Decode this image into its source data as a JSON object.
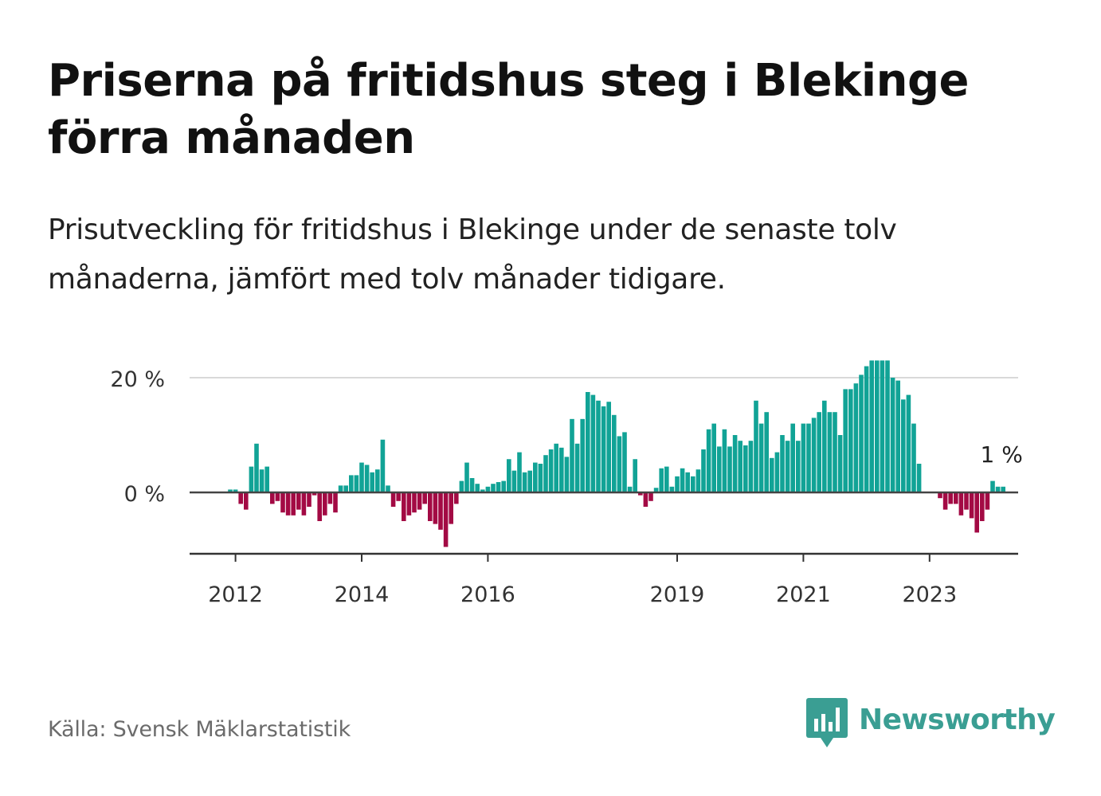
{
  "title": "Priserna på fritidshus steg i Blekinge förra månaden",
  "subtitle": "Prisutveckling för fritidshus i Blekinge under de senaste tolv månaderna, jämfört med tolv månader tidigare.",
  "source": "Källa: Svensk Mäklarstatistik",
  "brand": {
    "name": "Newsworthy",
    "icon": "newsworthy-bar-chart-icon"
  },
  "colors": {
    "positive": "#11a396",
    "negative": "#a30a44",
    "gridline": "#d9d9d9",
    "axis": "#333333",
    "brand": "#3a9e93"
  },
  "chart_data": {
    "type": "bar",
    "title": "",
    "xlabel": "",
    "ylabel": "",
    "ylim": [
      -11,
      23
    ],
    "yticks": [
      {
        "value": 0,
        "label": "0 %"
      },
      {
        "value": 20,
        "label": "20 %"
      }
    ],
    "xticks": [
      {
        "value": 2012,
        "label": "2012"
      },
      {
        "value": 2014,
        "label": "2014"
      },
      {
        "value": 2016,
        "label": "2016"
      },
      {
        "value": 2019,
        "label": "2019"
      },
      {
        "value": 2021,
        "label": "2021"
      },
      {
        "value": 2023,
        "label": "2023"
      }
    ],
    "grid": true,
    "start": "2011-12",
    "frequency": "monthly",
    "values": [
      0.5,
      0.5,
      -2,
      -3,
      4.5,
      8.5,
      4,
      4.5,
      -2,
      -1.5,
      -3.5,
      -4,
      -4,
      -3,
      -4,
      -2.5,
      -0.5,
      -5,
      -4,
      -2,
      -3.5,
      1.2,
      1.2,
      3,
      3,
      5.2,
      4.8,
      3.5,
      4,
      9.2,
      1.2,
      -2.5,
      -1.5,
      -5,
      -4,
      -3.5,
      -3,
      -2,
      -5,
      -5.5,
      -6.5,
      -9.5,
      -5.5,
      -2,
      2,
      5.2,
      2.5,
      1.5,
      0.5,
      1,
      1.5,
      1.8,
      2,
      5.8,
      3.8,
      7,
      3.5,
      3.8,
      5.2,
      5,
      6.5,
      7.5,
      8.5,
      7.8,
      6.2,
      12.8,
      8.5,
      12.8,
      17.5,
      17,
      16,
      15,
      15.8,
      13.5,
      9.8,
      10.5,
      1,
      5.8,
      -0.5,
      -2.5,
      -1.5,
      0.8,
      4.2,
      4.5,
      1,
      2.8,
      4.2,
      3.5,
      2.8,
      4,
      7.5,
      11,
      12,
      8,
      11,
      8,
      10,
      9,
      8.2,
      9,
      16,
      12,
      14,
      6,
      7,
      10,
      9,
      12,
      9,
      12,
      12,
      13,
      14,
      16,
      14,
      14,
      10,
      18,
      18,
      19,
      20.5,
      22,
      23,
      23,
      23,
      23,
      20,
      19.5,
      16.2,
      17,
      12,
      5,
      null,
      null,
      null,
      -1,
      -3,
      -2,
      -2,
      -4,
      -3,
      -4.5,
      -7,
      -5,
      -3,
      2,
      1,
      1
    ],
    "last_value_label": "1 %"
  }
}
